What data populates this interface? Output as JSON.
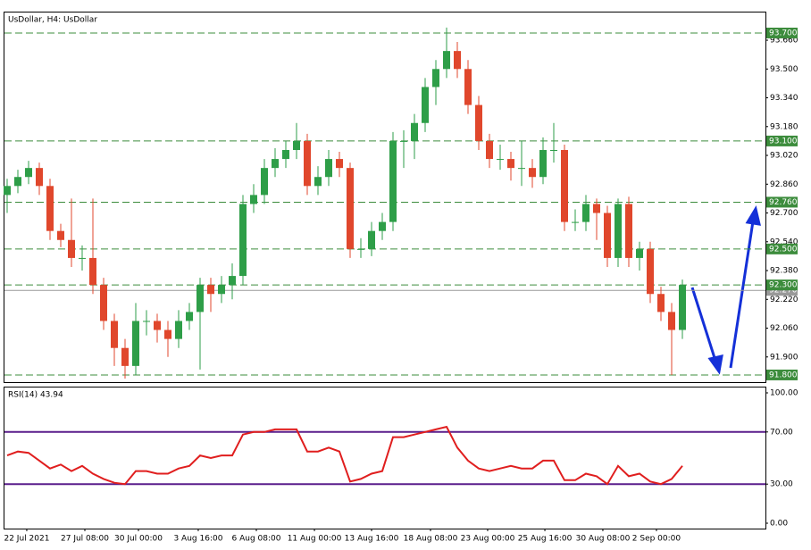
{
  "chart_data": [
    {
      "type": "candlestick",
      "title": "UsDollar, H4:  UsDollar",
      "open": [
        92.8,
        92.85,
        92.9,
        92.95,
        92.85,
        92.6,
        92.55,
        92.45,
        92.45,
        92.3,
        92.1,
        91.95,
        91.85,
        92.1,
        92.1,
        92.05,
        92.0,
        92.1,
        92.15,
        92.3,
        92.25,
        92.3,
        92.35,
        92.75,
        92.8,
        92.95,
        93.0,
        93.05,
        93.1,
        92.85,
        92.9,
        93.0,
        92.95,
        92.5,
        92.5,
        92.6,
        92.65,
        93.1,
        93.1,
        93.2,
        93.4,
        93.5,
        93.6,
        93.5,
        93.3,
        93.1,
        93.0,
        93.0,
        92.95,
        92.95,
        92.9,
        93.05,
        93.05,
        92.65,
        92.65,
        92.75,
        92.7,
        92.45,
        92.75,
        92.45,
        92.5,
        92.25,
        92.15,
        92.05
      ],
      "high": [
        92.89,
        92.94,
        92.99,
        92.98,
        92.89,
        92.64,
        92.78,
        92.52,
        92.78,
        92.34,
        92.14,
        92.0,
        92.2,
        92.16,
        92.14,
        92.1,
        92.16,
        92.2,
        92.34,
        92.34,
        92.35,
        92.42,
        92.8,
        92.86,
        93.0,
        93.06,
        93.1,
        93.2,
        93.14,
        92.96,
        93.05,
        93.04,
        92.98,
        92.56,
        92.65,
        92.7,
        93.15,
        93.16,
        93.25,
        93.45,
        93.55,
        93.73,
        93.65,
        93.55,
        93.35,
        93.14,
        93.08,
        93.04,
        93.1,
        93.0,
        93.12,
        93.2,
        93.08,
        92.72,
        92.8,
        92.78,
        92.74,
        92.78,
        92.79,
        92.54,
        92.54,
        92.29,
        92.2,
        92.33
      ],
      "low": [
        92.7,
        92.81,
        92.86,
        92.8,
        92.55,
        92.51,
        92.4,
        92.38,
        92.25,
        92.05,
        91.85,
        91.78,
        91.8,
        92.02,
        91.98,
        91.9,
        91.95,
        92.05,
        91.83,
        92.15,
        92.2,
        92.22,
        92.3,
        92.7,
        92.75,
        92.9,
        92.95,
        93.0,
        92.8,
        92.8,
        92.85,
        92.9,
        92.45,
        92.45,
        92.46,
        92.55,
        92.6,
        92.95,
        93.0,
        93.15,
        93.3,
        93.45,
        93.45,
        93.25,
        93.05,
        92.95,
        92.94,
        92.88,
        92.85,
        92.84,
        92.86,
        92.98,
        92.6,
        92.6,
        92.6,
        92.55,
        92.4,
        92.4,
        92.4,
        92.38,
        92.2,
        92.1,
        91.8,
        92.0
      ],
      "close": [
        92.85,
        92.9,
        92.95,
        92.85,
        92.6,
        92.55,
        92.45,
        92.45,
        92.3,
        92.1,
        91.95,
        91.85,
        92.1,
        92.1,
        92.05,
        92.0,
        92.1,
        92.15,
        92.3,
        92.25,
        92.3,
        92.35,
        92.75,
        92.8,
        92.95,
        93.0,
        93.05,
        93.1,
        92.85,
        92.9,
        93.0,
        92.95,
        92.5,
        92.5,
        92.6,
        92.65,
        93.1,
        93.1,
        93.2,
        93.4,
        93.5,
        93.6,
        93.5,
        93.3,
        93.1,
        93.0,
        93.0,
        92.95,
        92.95,
        92.9,
        93.05,
        93.05,
        92.65,
        92.65,
        92.75,
        92.7,
        92.45,
        92.75,
        92.45,
        92.5,
        92.25,
        92.15,
        92.05,
        92.3
      ],
      "up_color": "#2e9e48",
      "down_color": "#e0472c",
      "xlim": [
        -0.25,
        70.75
      ],
      "ylim": [
        91.76,
        93.814
      ],
      "yticks": [
        {
          "value": 93.66,
          "label": "93.660"
        },
        {
          "value": 93.5,
          "label": "93.500"
        },
        {
          "value": 93.34,
          "label": "93.340"
        },
        {
          "value": 93.18,
          "label": "93.180"
        },
        {
          "value": 93.02,
          "label": "93.020"
        },
        {
          "value": 92.86,
          "label": "92.860"
        },
        {
          "value": 92.7,
          "label": "92.700"
        },
        {
          "value": 92.54,
          "label": "92.540"
        },
        {
          "value": 92.38,
          "label": "92.380"
        },
        {
          "value": 92.22,
          "label": "92.220"
        },
        {
          "value": 92.06,
          "label": "92.060"
        },
        {
          "value": 91.9,
          "label": "91.900"
        }
      ],
      "levels": [
        {
          "value": 93.7,
          "label": "93.700"
        },
        {
          "value": 93.1,
          "label": "93.100"
        },
        {
          "value": 92.76,
          "label": "92.760"
        },
        {
          "value": 92.5,
          "label": "92.500"
        },
        {
          "value": 92.3,
          "label": "92.300"
        },
        {
          "value": 91.8,
          "label": "91.800"
        }
      ],
      "level_color": "#3c8c3c",
      "current_price": {
        "value": 92.27,
        "label": "92.270"
      }
    },
    {
      "type": "line",
      "title": "RSI(14) 43.94",
      "values": [
        52,
        55,
        54,
        48,
        42,
        45,
        40,
        44,
        38,
        34,
        31,
        30,
        40,
        40,
        38,
        38,
        42,
        44,
        52,
        50,
        52,
        52,
        68,
        70,
        70,
        72,
        72,
        72,
        55,
        55,
        58,
        55,
        32,
        34,
        38,
        40,
        66,
        66,
        68,
        70,
        72,
        74,
        58,
        48,
        42,
        40,
        42,
        44,
        42,
        42,
        48,
        48,
        33,
        33,
        38,
        36,
        30,
        44,
        36,
        38,
        32,
        30,
        34,
        43.94
      ],
      "color": "#e01e1e",
      "xlim": [
        -0.25,
        70.75
      ],
      "ylim": [
        -4.1,
        104.1
      ],
      "yticks": [
        {
          "value": 100,
          "label": "100.00"
        },
        {
          "value": 70,
          "label": "70.00"
        },
        {
          "value": 30,
          "label": "30.00"
        },
        {
          "value": 0,
          "label": "0.00"
        }
      ],
      "levels": [
        70,
        30
      ],
      "level_color": "#5a1e8c",
      "xticks": [
        {
          "value": 1.83,
          "label": "22 Jul 2021"
        },
        {
          "value": 7.25,
          "label": "27 Jul 08:00"
        },
        {
          "value": 12.25,
          "label": "30 Jul 00:00"
        },
        {
          "value": 17.83,
          "label": "3 Aug 16:00"
        },
        {
          "value": 23.25,
          "label": "6 Aug 08:00"
        },
        {
          "value": 28.67,
          "label": "11 Aug 00:00"
        },
        {
          "value": 34,
          "label": "13 Aug 16:00"
        },
        {
          "value": 39.5,
          "label": "18 Aug 08:00"
        },
        {
          "value": 44.83,
          "label": "23 Aug 00:00"
        },
        {
          "value": 50.17,
          "label": "25 Aug 16:00"
        },
        {
          "value": 55.58,
          "label": "30 Aug 08:00"
        },
        {
          "value": 60.58,
          "label": "2 Sep 00:00"
        }
      ]
    }
  ]
}
